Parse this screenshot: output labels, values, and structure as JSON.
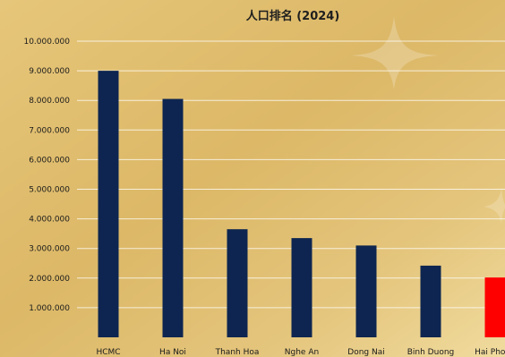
{
  "chart_data": {
    "type": "bar",
    "title": "人口排名 (2024)",
    "xlabel": "",
    "ylabel": "",
    "categories": [
      "HCMC",
      "Ha Noi",
      "Thanh Hoa",
      "Nghe An",
      "Dong Nai",
      "Binh Duong",
      "Hai Phong"
    ],
    "values": [
      9000000,
      8050000,
      3650000,
      3350000,
      3100000,
      2420000,
      2020000
    ],
    "ylim": [
      0,
      10000000
    ],
    "yticks": [
      1000000,
      2000000,
      3000000,
      4000000,
      5000000,
      6000000,
      7000000,
      8000000,
      9000000,
      10000000
    ],
    "ytick_labels": [
      "1.000.000",
      "2.000.000",
      "3.000.000",
      "4.000.000",
      "5.000.000",
      "6.000.000",
      "7.000.000",
      "8.000.000",
      "9.000.000",
      "10.000.000"
    ],
    "grid": true,
    "legend": "none"
  },
  "colors": {
    "bar": "#0d2550",
    "highlight_bar": "#ff0000",
    "background_light": "#f1dc9a",
    "background_dark": "#d4ad5c"
  },
  "highlight_category": "Hai Phong"
}
